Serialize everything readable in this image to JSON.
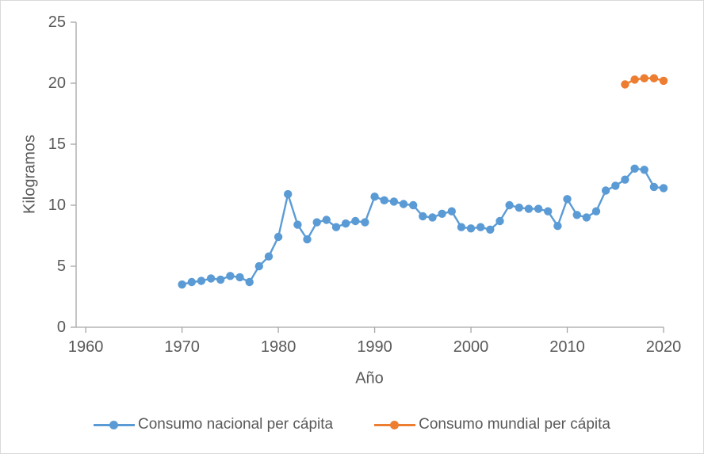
{
  "chart_data": {
    "type": "line",
    "title": "",
    "xlabel": "Año",
    "ylabel": "Kilogramos",
    "xlim": [
      1959,
      2020
    ],
    "ylim": [
      0,
      25
    ],
    "xticks": [
      1960,
      1970,
      1980,
      1990,
      2000,
      2010,
      2020
    ],
    "yticks": [
      0,
      5,
      10,
      15,
      20,
      25
    ],
    "grid": false,
    "legend_position": "bottom",
    "marker": "circle",
    "series": [
      {
        "name": "Consumo nacional per cápita",
        "color": "#5B9BD5",
        "x": [
          1970,
          1971,
          1972,
          1973,
          1974,
          1975,
          1976,
          1977,
          1978,
          1979,
          1980,
          1981,
          1982,
          1983,
          1984,
          1985,
          1986,
          1987,
          1988,
          1989,
          1990,
          1991,
          1992,
          1993,
          1994,
          1995,
          1996,
          1997,
          1998,
          1999,
          2000,
          2001,
          2002,
          2003,
          2004,
          2005,
          2006,
          2007,
          2008,
          2009,
          2010,
          2011,
          2012,
          2013,
          2014,
          2015,
          2016,
          2017,
          2018,
          2019,
          2020
        ],
        "values": [
          3.5,
          3.7,
          3.8,
          4.0,
          3.9,
          4.2,
          4.1,
          3.7,
          5.0,
          5.8,
          7.4,
          10.9,
          8.4,
          7.2,
          8.6,
          8.8,
          8.2,
          8.5,
          8.7,
          8.6,
          10.7,
          10.4,
          10.3,
          10.1,
          10.0,
          9.1,
          9.0,
          9.3,
          9.5,
          8.2,
          8.1,
          8.2,
          8.0,
          8.7,
          10.0,
          9.8,
          9.7,
          9.7,
          9.5,
          8.3,
          10.5,
          9.2,
          9.0,
          9.5,
          11.2,
          11.6,
          12.1,
          13.0,
          12.9,
          11.5,
          11.4
        ]
      },
      {
        "name": "Consumo mundial per cápita",
        "color": "#ED7D31",
        "x": [
          2016,
          2017,
          2018,
          2019,
          2020
        ],
        "values": [
          19.9,
          20.3,
          20.4,
          20.4,
          20.2
        ]
      }
    ]
  }
}
